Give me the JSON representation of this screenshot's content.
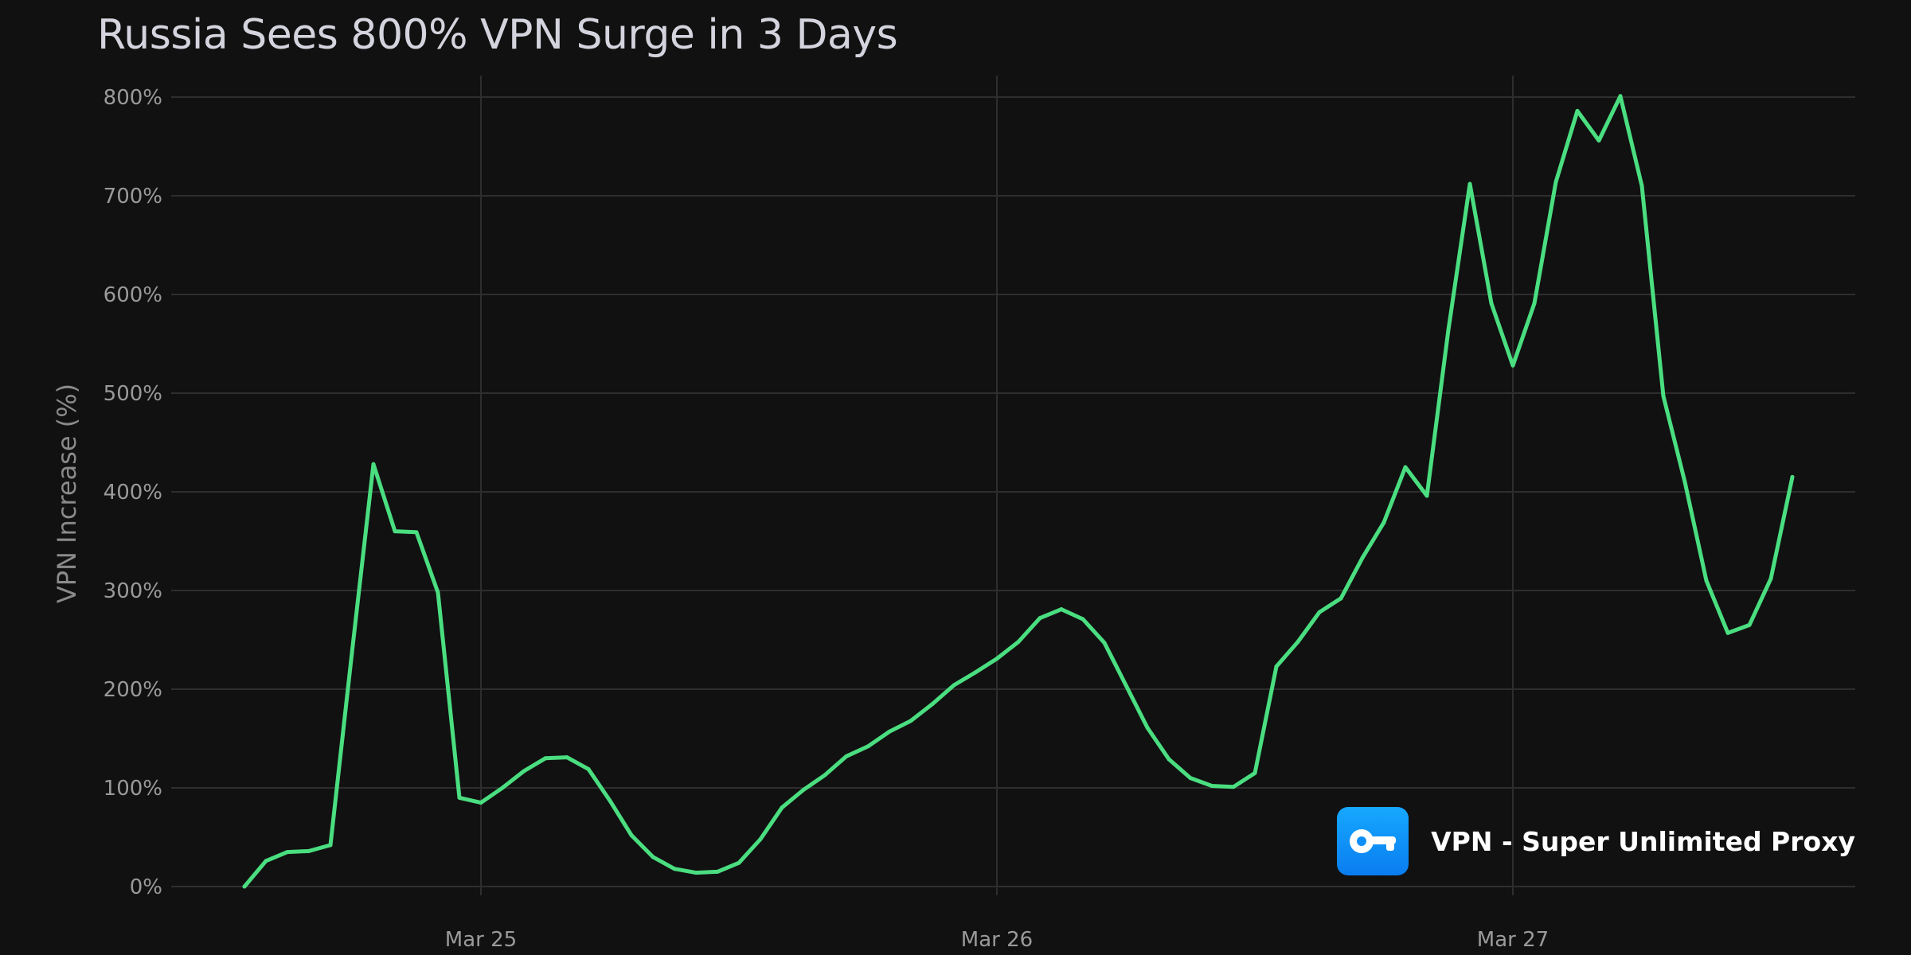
{
  "chart_data": {
    "type": "line",
    "title": "Russia Sees 800% VPN Surge in 3 Days",
    "ylabel": "VPN Increase (%)",
    "xlabel": "",
    "y_ticks": [
      "0%",
      "100%",
      "200%",
      "300%",
      "400%",
      "500%",
      "600%",
      "700%",
      "800%"
    ],
    "x_ticks": [
      "Mar 25",
      "Mar 26",
      "Mar 27"
    ],
    "ylim": [
      0,
      800
    ],
    "grid": true,
    "line_color": "#4ade80",
    "series": [
      {
        "x": [
          "Mar 24 13:00",
          "Mar 24 14:00",
          "Mar 24 15:00",
          "Mar 24 16:00",
          "Mar 24 17:00",
          "Mar 24 18:00",
          "Mar 24 19:00",
          "Mar 24 20:00",
          "Mar 24 21:00",
          "Mar 24 22:00",
          "Mar 24 23:00",
          "Mar 25 00:00",
          "Mar 25 01:00",
          "Mar 25 02:00",
          "Mar 25 03:00",
          "Mar 25 04:00",
          "Mar 25 05:00",
          "Mar 25 06:00",
          "Mar 25 07:00",
          "Mar 25 08:00",
          "Mar 25 09:00",
          "Mar 25 10:00",
          "Mar 25 11:00",
          "Mar 25 12:00",
          "Mar 25 13:00",
          "Mar 25 14:00",
          "Mar 25 15:00",
          "Mar 25 16:00",
          "Mar 25 17:00",
          "Mar 25 18:00",
          "Mar 25 19:00",
          "Mar 25 20:00",
          "Mar 25 21:00",
          "Mar 25 22:00",
          "Mar 25 23:00",
          "Mar 26 00:00",
          "Mar 26 01:00",
          "Mar 26 02:00",
          "Mar 26 03:00",
          "Mar 26 04:00",
          "Mar 26 05:00",
          "Mar 26 06:00",
          "Mar 26 07:00",
          "Mar 26 08:00",
          "Mar 26 09:00",
          "Mar 26 10:00",
          "Mar 26 11:00",
          "Mar 26 12:00",
          "Mar 26 13:00",
          "Mar 26 14:00",
          "Mar 26 15:00",
          "Mar 26 16:00",
          "Mar 26 17:00",
          "Mar 26 18:00",
          "Mar 26 19:00",
          "Mar 26 20:00",
          "Mar 26 21:00",
          "Mar 26 22:00",
          "Mar 26 23:00",
          "Mar 27 00:00",
          "Mar 27 01:00",
          "Mar 27 02:00",
          "Mar 27 03:00",
          "Mar 27 04:00",
          "Mar 27 05:00",
          "Mar 27 06:00",
          "Mar 27 07:00",
          "Mar 27 08:00",
          "Mar 27 09:00",
          "Mar 27 10:00",
          "Mar 27 11:00",
          "Mar 27 12:00",
          "Mar 27 13:00"
        ],
        "values": [
          0,
          26,
          35,
          36,
          42,
          237,
          428,
          360,
          359,
          298,
          90,
          85,
          100,
          117,
          130,
          131,
          119,
          87,
          52,
          30,
          18,
          14,
          15,
          24,
          48,
          80,
          98,
          113,
          132,
          142,
          157,
          168,
          185,
          204,
          217,
          231,
          248,
          272,
          281,
          271,
          247,
          204,
          161,
          129,
          110,
          102,
          101,
          115,
          223,
          248,
          278,
          292,
          333,
          369,
          425,
          396,
          564,
          712,
          591,
          528,
          591,
          714,
          786,
          756,
          801,
          710,
          497,
          410,
          310,
          257,
          265,
          312,
          415
        ]
      }
    ]
  },
  "brand": {
    "app_name": "VPN - Super Unlimited Proxy",
    "icon": "key-icon",
    "icon_color": "#0f8ff7"
  }
}
